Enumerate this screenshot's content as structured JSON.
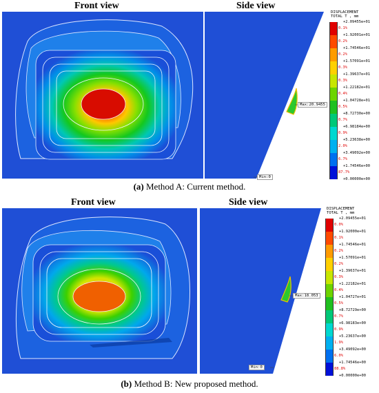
{
  "figure_a": {
    "front_title": "Front view",
    "side_title": "Side view",
    "caption_label": "(a)",
    "caption_text": " Method A: Current method.",
    "max_label": "Max:20.9455",
    "min_label": "Min:0",
    "legend": {
      "header1": "DISPLACEMENT",
      "header2": "TOTAL T , mm",
      "values": [
        "+2.09455e+01",
        "+1.92001e+01",
        "+1.74546e+01",
        "+1.57091e+01",
        "+1.39637e+01",
        "+1.22182e+01",
        "+1.04728e+01",
        "+8.72730e+00",
        "+6.98184e+00",
        "+5.23638e+00",
        "+3.49092e+00",
        "+1.74546e+00",
        "+0.00000e+00"
      ],
      "percents": [
        "0.1%",
        "0.2%",
        "0.2%",
        "0.3%",
        "0.3%",
        "0.4%",
        "0.5%",
        "0.7%",
        "0.9%",
        "2.0%",
        "6.7%",
        "87.7%"
      ]
    }
  },
  "figure_b": {
    "front_title": "Front view",
    "side_title": "Side view",
    "caption_label": "(b)",
    "caption_text": " Method B: New proposed method.",
    "max_label": "Max:18.053",
    "min_label": "Min:0",
    "legend": {
      "header1": "DISPLACEMENT",
      "header2": "TOTAL T , mm",
      "values": [
        "+2.09455e+01",
        "+1.92000e+01",
        "+1.74546e+01",
        "+1.57091e+01",
        "+1.39637e+01",
        "+1.22182e+01",
        "+1.04727e+01",
        "+8.72729e+00",
        "+6.98183e+00",
        "+5.23637e+00",
        "+3.49092e+00",
        "+1.74546e+00",
        "+0.00000e+00"
      ],
      "percents": [
        "0.0%",
        "0.1%",
        "0.2%",
        "0.2%",
        "0.3%",
        "0.4%",
        "0.5%",
        "0.7%",
        "0.9%",
        "1.9%",
        "6.0%",
        "88.8%"
      ]
    }
  },
  "legend_colors": [
    "#e00000",
    "#ff4a00",
    "#ff9b00",
    "#ffd000",
    "#c8e600",
    "#6ed400",
    "#20c020",
    "#00c878",
    "#00d8d0",
    "#00b0f0",
    "#0070f0",
    "#0010d8"
  ]
}
